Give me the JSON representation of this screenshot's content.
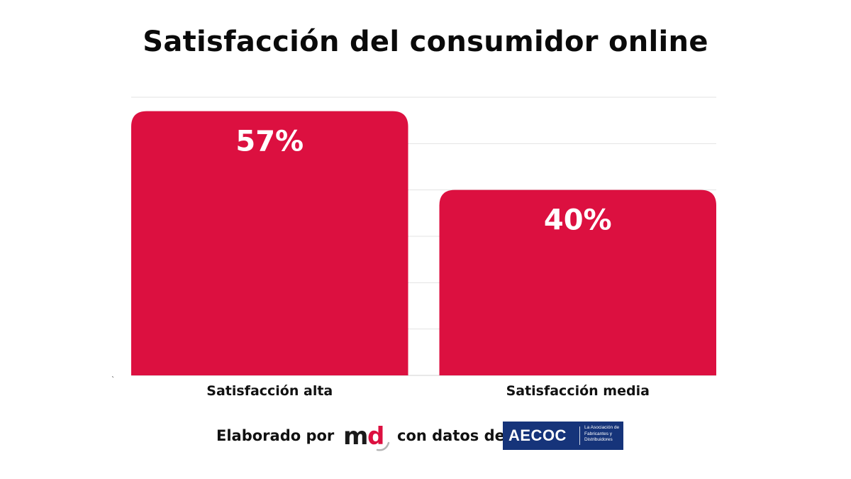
{
  "chart_data": {
    "type": "bar",
    "title": "Satisfacción del consumidor online",
    "categories": [
      "Satisfacción alta",
      "Satisfacción media"
    ],
    "values": [
      57,
      40
    ],
    "data_labels": [
      "57%",
      "40%"
    ],
    "ylim": [
      0,
      60
    ],
    "unit": "%",
    "grid": true,
    "legend": "none",
    "bar_color": "#dc1040",
    "grid_color": "#e3e3e3",
    "label_color": "#ffffff"
  },
  "footer": {
    "credit_by": "Elaborado por",
    "md_logo": "md",
    "credit_with": "con datos de",
    "aecoc_logo": "AECOC",
    "aecoc_tagline": "La Asociación de Fabricantes y Distribuidores"
  },
  "colors": {
    "accent": "#dc1040",
    "md_dark": "#1a1a1a",
    "md_red": "#dc1040",
    "aecoc_blue": "#16347a"
  }
}
